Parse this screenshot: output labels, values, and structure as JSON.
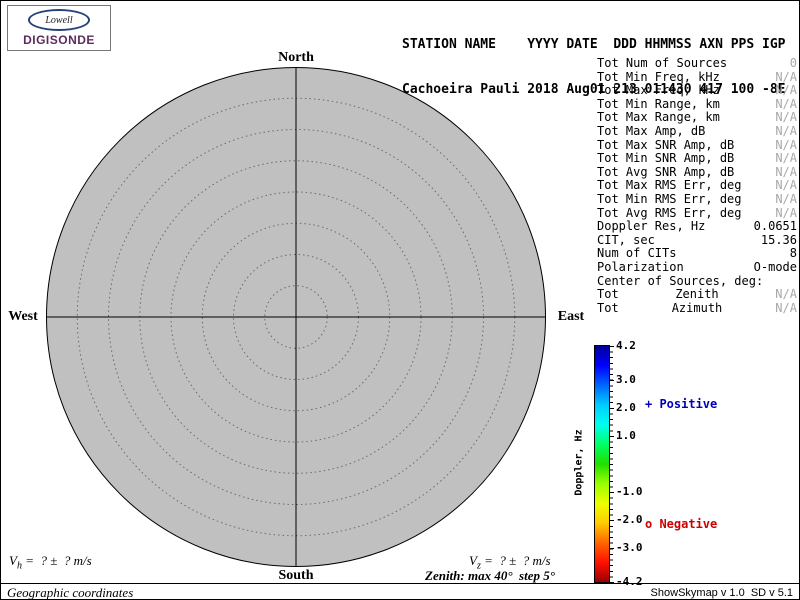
{
  "logo": {
    "brand": "Lowell",
    "product": "DIGISONDE"
  },
  "header": {
    "line1": "STATION NAME    YYYY DATE  DDD HHMMSS AXN PPS IGP",
    "line2": "Cachoeira Pauli 2018 Aug01 213 011430 417 100 -8E"
  },
  "compass": {
    "north": "North",
    "south": "South",
    "west": "West",
    "east": "East"
  },
  "params": {
    "rows": [
      {
        "label": "Tot Num of Sources",
        "value": "0",
        "dim": true
      },
      {
        "label": "Tot Min Freq, kHz",
        "value": "N/A",
        "dim": true
      },
      {
        "label": "Tot Max Freq, kHz",
        "value": "N/A",
        "dim": true
      },
      {
        "label": "Tot Min Range, km",
        "value": "N/A",
        "dim": true
      },
      {
        "label": "Tot Max Range, km",
        "value": "N/A",
        "dim": true
      },
      {
        "label": "Tot Max Amp, dB",
        "value": "N/A",
        "dim": true
      },
      {
        "label": "Tot Max SNR Amp, dB",
        "value": "N/A",
        "dim": true
      },
      {
        "label": "Tot Min SNR Amp, dB",
        "value": "N/A",
        "dim": true
      },
      {
        "label": "Tot Avg SNR Amp, dB",
        "value": "N/A",
        "dim": true
      },
      {
        "label": "Tot Max RMS Err, deg",
        "value": "N/A",
        "dim": true
      },
      {
        "label": "Tot Min RMS Err, deg",
        "value": "N/A",
        "dim": true
      },
      {
        "label": "Tot Avg RMS Err, deg",
        "value": "N/A",
        "dim": true
      },
      {
        "label": "Doppler Res, Hz",
        "value": "0.0651",
        "dim": false
      },
      {
        "label": "CIT, sec",
        "value": "15.36",
        "dim": false
      },
      {
        "label": "Num of CITs",
        "value": "8",
        "dim": false
      },
      {
        "label": "Polarization",
        "value": "O-mode",
        "dim": false
      }
    ],
    "center_header": "Center of Sources, deg:",
    "center_rows": [
      {
        "label": "Tot",
        "sub": "Zenith",
        "value": "N/A",
        "dim": true
      },
      {
        "label": "Tot",
        "sub": "Azimuth",
        "value": "N/A",
        "dim": true
      }
    ]
  },
  "colorbar": {
    "title": "Doppler, Hz",
    "max": 4.2,
    "min": -4.2,
    "ticks": [
      "4.2",
      "3.0",
      "2.0",
      "1.0",
      "-1.0",
      "-2.0",
      "-3.0",
      "-4.2"
    ],
    "gradient": [
      "#000099",
      "#0000ff",
      "#0066ff",
      "#00ccff",
      "#00ffee",
      "#00ff66",
      "#22dd00",
      "#99ff00",
      "#eeff00",
      "#ffcc00",
      "#ff6600",
      "#ff1100",
      "#990000"
    ],
    "positive_label": "+ Positive",
    "negative_label": "o Negative",
    "positive_color": "#0000bb",
    "negative_color": "#cc0000"
  },
  "skymap": {
    "zenith_max_deg": 40,
    "zenith_step_deg": 5,
    "rings": 8,
    "fill_color": "#c0c0c0"
  },
  "footer": {
    "vh_prefix": "V",
    "vh_sub": "h",
    "vh_eq": " =  ? ±  ? m/s",
    "vz_prefix": "V",
    "vz_sub": "z",
    "vz_eq": " =  ? ±  ? m/s",
    "zenith_note": "Zenith: max 40°  step 5°",
    "coordinates": "Geographic coordinates",
    "version": "ShowSkymap v 1.0  SD v 5.1"
  }
}
